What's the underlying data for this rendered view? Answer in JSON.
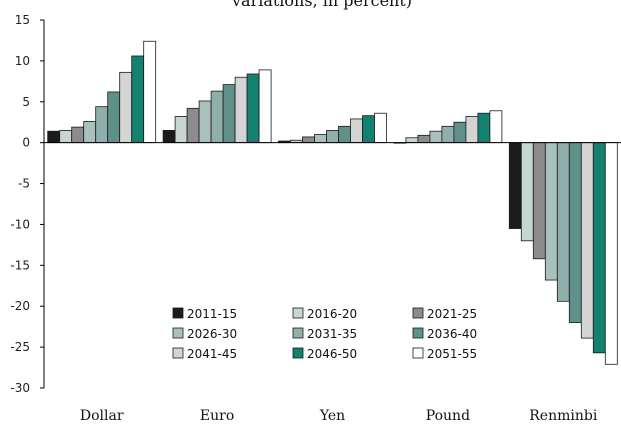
{
  "chart_data": {
    "type": "bar",
    "title": "variations, in percent)",
    "categories": [
      "Dollar",
      "Euro",
      "Yen",
      "Pound",
      "Renminbi"
    ],
    "ylim": [
      -30,
      15
    ],
    "yticks": [
      15,
      10,
      5,
      0,
      -5,
      -10,
      -15,
      -20,
      -25,
      -30
    ],
    "grid": false,
    "legend_position": "bottom-center",
    "series": [
      {
        "name": "2011-15",
        "color": "#1c1c1c",
        "values": [
          1.4,
          1.5,
          0.2,
          0.0,
          -10.5
        ]
      },
      {
        "name": "2016-20",
        "color": "#c5d6d3",
        "values": [
          1.5,
          3.2,
          0.3,
          0.6,
          -12.0
        ]
      },
      {
        "name": "2021-25",
        "color": "#8c8c8c",
        "values": [
          1.9,
          4.2,
          0.7,
          0.9,
          -14.2
        ]
      },
      {
        "name": "2026-30",
        "color": "#a9c1bd",
        "values": [
          2.6,
          5.1,
          1.0,
          1.4,
          -16.8
        ]
      },
      {
        "name": "2031-35",
        "color": "#8fb0aa",
        "values": [
          4.4,
          6.3,
          1.5,
          2.0,
          -19.4
        ]
      },
      {
        "name": "2036-40",
        "color": "#5f918a",
        "values": [
          6.2,
          7.1,
          2.0,
          2.5,
          -22.0
        ]
      },
      {
        "name": "2041-45",
        "color": "#d4d4d4",
        "values": [
          8.6,
          8.0,
          2.9,
          3.2,
          -23.9
        ]
      },
      {
        "name": "2046-50",
        "color": "#128170",
        "values": [
          10.6,
          8.4,
          3.3,
          3.6,
          -25.7
        ]
      },
      {
        "name": "2051-55",
        "color": "#ffffff",
        "values": [
          12.4,
          8.9,
          3.6,
          3.9,
          -27.1
        ]
      }
    ]
  }
}
